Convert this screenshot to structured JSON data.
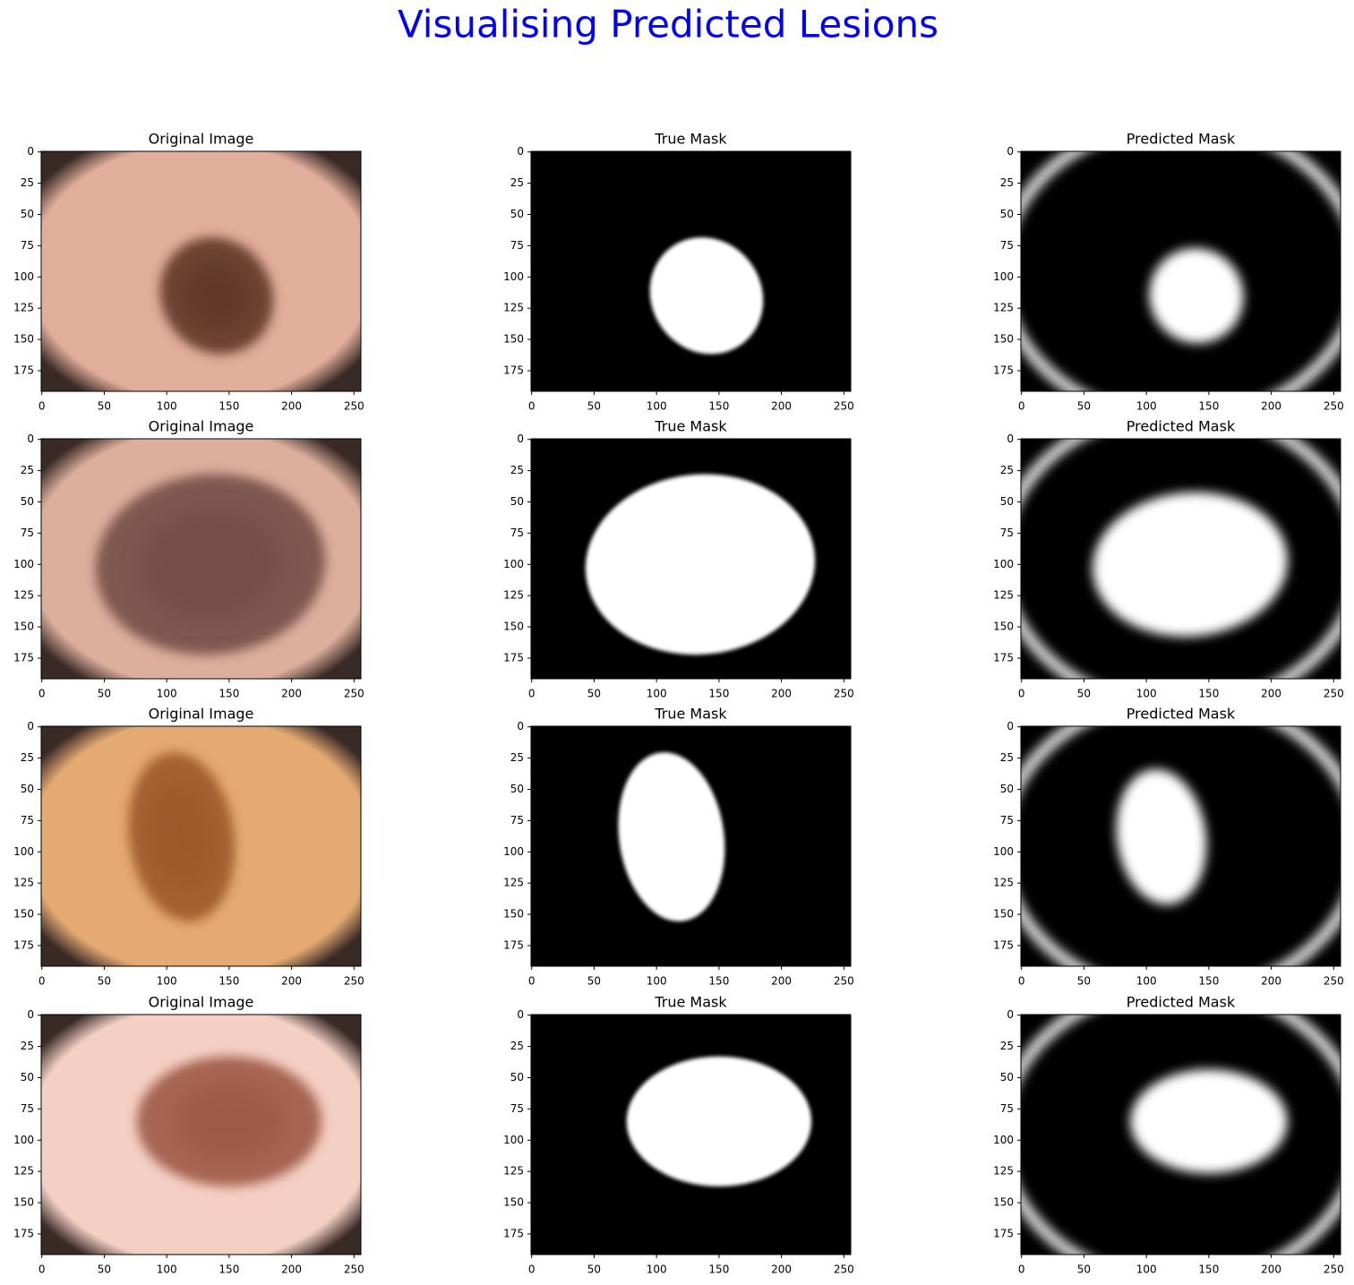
{
  "figure_title": "Visualising Predicted Lesions",
  "chart_data": [
    {
      "type": "image",
      "title": "Original Image",
      "xlim": [
        -0.5,
        255.5
      ],
      "ylim": [
        191.5,
        -0.5
      ],
      "xticks": [
        0,
        50,
        100,
        150,
        200,
        250
      ],
      "yticks": [
        0,
        25,
        50,
        75,
        100,
        125,
        150,
        175
      ]
    },
    {
      "type": "image",
      "title": "True Mask",
      "xlim": [
        -0.5,
        255.5
      ],
      "ylim": [
        191.5,
        -0.5
      ],
      "xticks": [
        0,
        50,
        100,
        150,
        200,
        250
      ],
      "yticks": [
        0,
        25,
        50,
        75,
        100,
        125,
        150,
        175
      ]
    },
    {
      "type": "image",
      "title": "Predicted Mask",
      "xlim": [
        -0.5,
        255.5
      ],
      "ylim": [
        191.5,
        -0.5
      ],
      "xticks": [
        0,
        50,
        100,
        150,
        200,
        250
      ],
      "yticks": [
        0,
        25,
        50,
        75,
        100,
        125,
        150,
        175
      ]
    },
    {
      "type": "image",
      "title": "Original Image",
      "xlim": [
        -0.5,
        255.5
      ],
      "ylim": [
        191.5,
        -0.5
      ],
      "xticks": [
        0,
        50,
        100,
        150,
        200,
        250
      ],
      "yticks": [
        0,
        25,
        50,
        75,
        100,
        125,
        150,
        175
      ]
    },
    {
      "type": "image",
      "title": "True Mask",
      "xlim": [
        -0.5,
        255.5
      ],
      "ylim": [
        191.5,
        -0.5
      ],
      "xticks": [
        0,
        50,
        100,
        150,
        200,
        250
      ],
      "yticks": [
        0,
        25,
        50,
        75,
        100,
        125,
        150,
        175
      ]
    },
    {
      "type": "image",
      "title": "Predicted Mask",
      "xlim": [
        -0.5,
        255.5
      ],
      "ylim": [
        191.5,
        -0.5
      ],
      "xticks": [
        0,
        50,
        100,
        150,
        200,
        250
      ],
      "yticks": [
        0,
        25,
        50,
        75,
        100,
        125,
        150,
        175
      ]
    },
    {
      "type": "image",
      "title": "Original Image",
      "xlim": [
        -0.5,
        255.5
      ],
      "ylim": [
        191.5,
        -0.5
      ],
      "xticks": [
        0,
        50,
        100,
        150,
        200,
        250
      ],
      "yticks": [
        0,
        25,
        50,
        75,
        100,
        125,
        150,
        175
      ]
    },
    {
      "type": "image",
      "title": "True Mask",
      "xlim": [
        -0.5,
        255.5
      ],
      "ylim": [
        191.5,
        -0.5
      ],
      "xticks": [
        0,
        50,
        100,
        150,
        200,
        250
      ],
      "yticks": [
        0,
        25,
        50,
        75,
        100,
        125,
        150,
        175
      ]
    },
    {
      "type": "image",
      "title": "Predicted Mask",
      "xlim": [
        -0.5,
        255.5
      ],
      "ylim": [
        191.5,
        -0.5
      ],
      "xticks": [
        0,
        50,
        100,
        150,
        200,
        250
      ],
      "yticks": [
        0,
        25,
        50,
        75,
        100,
        125,
        150,
        175
      ]
    },
    {
      "type": "image",
      "title": "Original Image",
      "xlim": [
        -0.5,
        255.5
      ],
      "ylim": [
        191.5,
        -0.5
      ],
      "xticks": [
        0,
        50,
        100,
        150,
        200,
        250
      ],
      "yticks": [
        0,
        25,
        50,
        75,
        100,
        125,
        150,
        175
      ]
    },
    {
      "type": "image",
      "title": "True Mask",
      "xlim": [
        -0.5,
        255.5
      ],
      "ylim": [
        191.5,
        -0.5
      ],
      "xticks": [
        0,
        50,
        100,
        150,
        200,
        250
      ],
      "yticks": [
        0,
        25,
        50,
        75,
        100,
        125,
        150,
        175
      ]
    },
    {
      "type": "image",
      "title": "Predicted Mask",
      "xlim": [
        -0.5,
        255.5
      ],
      "ylim": [
        191.5,
        -0.5
      ],
      "xticks": [
        0,
        50,
        100,
        150,
        200,
        250
      ],
      "yticks": [
        0,
        25,
        50,
        75,
        100,
        125,
        150,
        175
      ]
    }
  ]
}
